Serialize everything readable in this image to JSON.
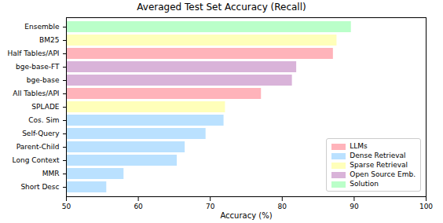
{
  "chart_data": {
    "type": "bar",
    "orientation": "horizontal",
    "title": "Averaged Test Set Accuracy (Recall)",
    "xlabel": "Accuracy (%)",
    "categories": [
      "Ensemble",
      "BM25",
      "Half Tables/API",
      "bge-base-FT",
      "bge-base",
      "All Tables/API",
      "SPLADE",
      "Cos. Sim",
      "Self-Query",
      "Parent-Child",
      "Long Context",
      "MMR",
      "Short Desc"
    ],
    "series": [
      {
        "name": "LLMs",
        "color": "#ffb3ba",
        "values": [
          null,
          null,
          87.1,
          null,
          null,
          77.1,
          null,
          null,
          null,
          null,
          null,
          null,
          null
        ]
      },
      {
        "name": "Dense Retrieval",
        "color": "#bae1ff",
        "values": [
          null,
          null,
          null,
          null,
          null,
          null,
          null,
          71.9,
          69.4,
          66.5,
          65.4,
          58.0,
          55.6
        ]
      },
      {
        "name": "Sparse Retrieval",
        "color": "#ffffba",
        "values": [
          null,
          87.6,
          null,
          null,
          null,
          null,
          72.1,
          null,
          null,
          null,
          null,
          null,
          null
        ]
      },
      {
        "name": "Open Source Emb.",
        "color": "#d9b3d9",
        "values": [
          null,
          null,
          null,
          82.0,
          81.4,
          null,
          null,
          null,
          null,
          null,
          null,
          null,
          null
        ]
      },
      {
        "name": "Solution",
        "color": "#baffc9",
        "values": [
          89.6,
          null,
          null,
          null,
          null,
          null,
          null,
          null,
          null,
          null,
          null,
          null,
          null
        ]
      }
    ],
    "xlim": [
      50,
      100
    ],
    "xticks": [
      50,
      60,
      70,
      80,
      90,
      100
    ],
    "grid": false,
    "legend": "lower right"
  }
}
